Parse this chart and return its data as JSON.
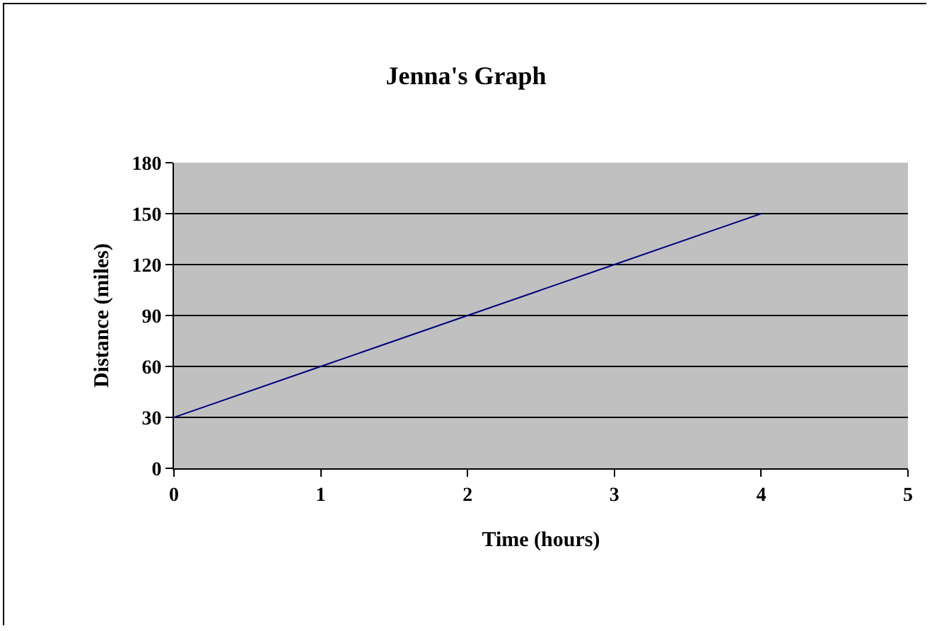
{
  "chart_data": {
    "type": "line",
    "title": "Jenna's Graph",
    "xlabel": "Time (hours)",
    "ylabel": "Distance (miles)",
    "x": [
      0,
      1,
      2,
      3,
      4
    ],
    "series": [
      {
        "color": "#000080",
        "values": [
          30,
          60,
          90,
          120,
          150
        ]
      }
    ],
    "xlim": [
      0,
      5
    ],
    "xticks": [
      0,
      1,
      2,
      3,
      4,
      5
    ],
    "ylim": [
      0,
      180
    ],
    "yticks": [
      0,
      30,
      60,
      90,
      120,
      150,
      180
    ],
    "grid": "y",
    "marker": "none",
    "line_style": "solid"
  }
}
